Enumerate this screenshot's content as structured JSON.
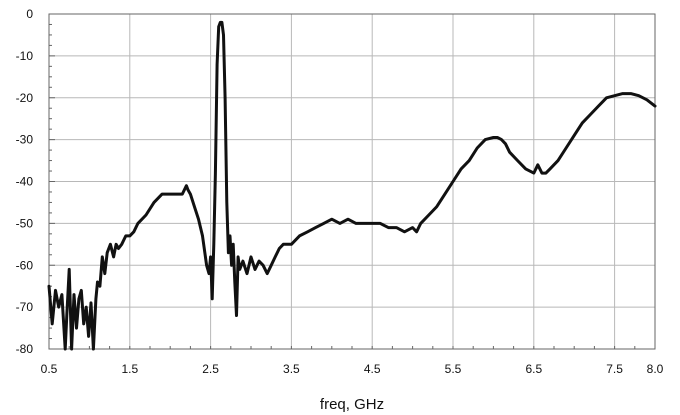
{
  "chart_data": {
    "type": "line",
    "title": "",
    "xlabel": "freq, GHz",
    "ylabel": "",
    "xlim": [
      0.5,
      8.0
    ],
    "ylim": [
      -80,
      0
    ],
    "grid": true,
    "xticks": [
      0.5,
      1.5,
      2.5,
      3.5,
      4.5,
      5.5,
      6.5,
      7.5,
      8.0
    ],
    "xtick_labels": [
      "0.5",
      "1.5",
      "2.5",
      "3.5",
      "4.5",
      "5.5",
      "6.5",
      "7.5",
      "8.0"
    ],
    "yticks": [
      0,
      -10,
      -20,
      -30,
      -40,
      -50,
      -60,
      -70,
      -80
    ],
    "ytick_labels": [
      "0",
      "-10",
      "-20",
      "-30",
      "-40",
      "-50",
      "-60",
      "-70",
      "-80"
    ],
    "colors": {
      "line": "#111111",
      "grid": "#b8b8b8",
      "frame": "#666666"
    },
    "series": [
      {
        "x": [
          0.5,
          0.54,
          0.58,
          0.62,
          0.66,
          0.7,
          0.72,
          0.75,
          0.78,
          0.81,
          0.84,
          0.87,
          0.9,
          0.93,
          0.96,
          0.99,
          1.02,
          1.05,
          1.08,
          1.1,
          1.13,
          1.16,
          1.19,
          1.22,
          1.26,
          1.3,
          1.33,
          1.36,
          1.4,
          1.45,
          1.5,
          1.55,
          1.6,
          1.7,
          1.8,
          1.9,
          2.0,
          2.1,
          2.15,
          2.2,
          2.22,
          2.25,
          2.3,
          2.35,
          2.4,
          2.45,
          2.48,
          2.5,
          2.52,
          2.54,
          2.56,
          2.58,
          2.6,
          2.62,
          2.64,
          2.66,
          2.68,
          2.7,
          2.72,
          2.74,
          2.76,
          2.78,
          2.8,
          2.82,
          2.84,
          2.86,
          2.88,
          2.9,
          2.95,
          3.0,
          3.05,
          3.1,
          3.15,
          3.2,
          3.25,
          3.3,
          3.35,
          3.4,
          3.5,
          3.6,
          3.7,
          3.8,
          3.9,
          4.0,
          4.1,
          4.2,
          4.3,
          4.4,
          4.5,
          4.6,
          4.7,
          4.8,
          4.9,
          5.0,
          5.05,
          5.1,
          5.2,
          5.3,
          5.4,
          5.5,
          5.6,
          5.7,
          5.8,
          5.9,
          6.0,
          6.05,
          6.1,
          6.15,
          6.2,
          6.3,
          6.4,
          6.5,
          6.55,
          6.6,
          6.65,
          6.7,
          6.8,
          6.9,
          7.0,
          7.1,
          7.2,
          7.3,
          7.4,
          7.5,
          7.6,
          7.7,
          7.8,
          7.9,
          8.0
        ],
        "y": [
          -65,
          -74,
          -66,
          -70,
          -67,
          -80,
          -72,
          -61,
          -80,
          -67,
          -75,
          -68,
          -66,
          -74,
          -70,
          -77,
          -69,
          -80,
          -68,
          -64,
          -65,
          -58,
          -62,
          -57,
          -55,
          -58,
          -55,
          -56,
          -55,
          -53,
          -53,
          -52,
          -50,
          -48,
          -45,
          -43,
          -43,
          -43,
          -43,
          -41,
          -42,
          -43,
          -46,
          -49,
          -53,
          -60,
          -62,
          -58,
          -68,
          -55,
          -38,
          -12,
          -3,
          -2,
          -2,
          -5,
          -20,
          -45,
          -57,
          -53,
          -60,
          -55,
          -64,
          -72,
          -58,
          -61,
          -60,
          -59,
          -62,
          -58,
          -61,
          -59,
          -60,
          -62,
          -60,
          -58,
          -56,
          -55,
          -55,
          -53,
          -52,
          -51,
          -50,
          -49,
          -50,
          -49,
          -50,
          -50,
          -50,
          -50,
          -51,
          -51,
          -52,
          -51,
          -52,
          -50,
          -48,
          -46,
          -43,
          -40,
          -37,
          -35,
          -32,
          -30,
          -29.5,
          -29.5,
          -30,
          -31,
          -33,
          -35,
          -37,
          -38,
          -36,
          -38,
          -38,
          -37,
          -35,
          -32,
          -29,
          -26,
          -24,
          -22,
          -20,
          -19.5,
          -19,
          -19,
          -19.5,
          -20.5,
          -22
        ]
      }
    ]
  }
}
